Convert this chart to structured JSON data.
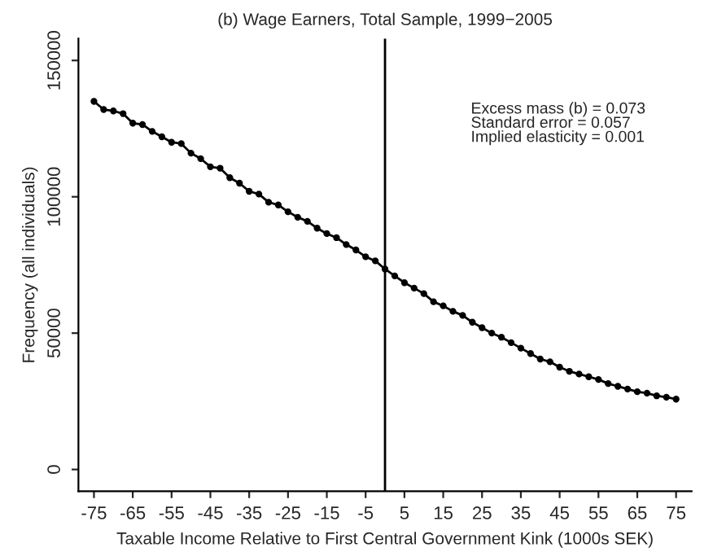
{
  "chart_data": {
    "type": "line",
    "title": "(b) Wage Earners, Total Sample, 1999−2005",
    "xlabel": "Taxable Income Relative to First Central Government Kink (1000s SEK)",
    "ylabel": "Frequency (all individuals)",
    "x": [
      -75,
      -72.5,
      -70,
      -67.5,
      -65,
      -62.5,
      -60,
      -57.5,
      -55,
      -52.5,
      -50,
      -47.5,
      -45,
      -42.5,
      -40,
      -37.5,
      -35,
      -32.5,
      -30,
      -27.5,
      -25,
      -22.5,
      -20,
      -17.5,
      -15,
      -12.5,
      -10,
      -7.5,
      -5,
      -2.5,
      0,
      2.5,
      5,
      7.5,
      10,
      12.5,
      15,
      17.5,
      20,
      22.5,
      25,
      27.5,
      30,
      32.5,
      35,
      37.5,
      40,
      42.5,
      45,
      47.5,
      50,
      52.5,
      55,
      57.5,
      60,
      62.5,
      65,
      67.5,
      70,
      72.5,
      75
    ],
    "series": [
      {
        "color": "#000000",
        "values": [
          135000,
          132000,
          131500,
          130500,
          127000,
          126500,
          124000,
          122000,
          120000,
          119500,
          116000,
          114000,
          111000,
          110500,
          107000,
          105000,
          102000,
          101000,
          98000,
          97000,
          94500,
          92500,
          91000,
          88500,
          86500,
          85000,
          82500,
          80500,
          78000,
          76500,
          73500,
          71000,
          68500,
          66500,
          64500,
          61500,
          60000,
          58000,
          56500,
          54000,
          52000,
          50000,
          48500,
          46500,
          44500,
          42500,
          40500,
          39500,
          37500,
          36000,
          35000,
          34000,
          33000,
          31500,
          30500,
          29500,
          28500,
          28000,
          27000,
          26500,
          25800
        ]
      }
    ],
    "xlim": [
      -79,
      79
    ],
    "ylim": [
      -8000,
      158000
    ],
    "xticks": [
      -75,
      -65,
      -55,
      -45,
      -35,
      -25,
      -15,
      -5,
      5,
      15,
      25,
      35,
      45,
      55,
      65,
      75
    ],
    "yticks": [
      0,
      50000,
      100000,
      150000
    ],
    "ref_lines": [
      {
        "axis": "x",
        "value": 0,
        "color": "#000000"
      }
    ],
    "annotations": [
      "Excess mass (b) = 0.073\nStandard error = 0.057\nImplied elasticity = 0.001"
    ],
    "marker": "circle",
    "line_style": "solid",
    "grid": false,
    "legend": false
  }
}
